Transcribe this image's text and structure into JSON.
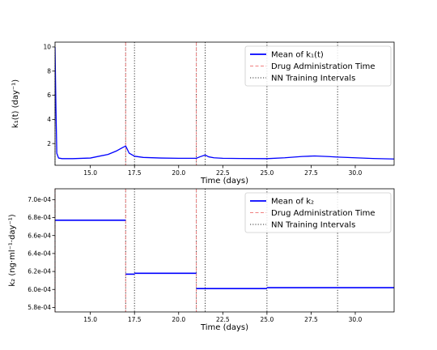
{
  "chart_data": [
    {
      "type": "line",
      "xlabel": "Time (days)",
      "ylabel": "k₁(t) (day⁻¹)",
      "xlim": [
        13.0,
        32.2
      ],
      "ylim": [
        0.2,
        10.4
      ],
      "x_ticks": [
        15.0,
        17.5,
        20.0,
        22.5,
        25.0,
        27.5,
        30.0
      ],
      "x_tick_labels": [
        "15.0",
        "17.5",
        "20.0",
        "22.5",
        "25.0",
        "27.5",
        "30.0"
      ],
      "y_ticks": [
        2,
        4,
        6,
        8,
        10
      ],
      "y_tick_labels": [
        "2",
        "4",
        "6",
        "8",
        "10"
      ],
      "legend_position": "upper-right",
      "legend": [
        {
          "label": "Mean of k₁(t)",
          "style": "solid",
          "color": "#0000ff"
        },
        {
          "label": "Drug Administration Time",
          "style": "dashed",
          "color": "#f08080"
        },
        {
          "label": "NN Training Intervals",
          "style": "dotted",
          "color": "#333333"
        }
      ],
      "series": [
        {
          "name": "Mean of k₁(t)",
          "color": "#0000ff",
          "x": [
            13.0,
            13.05,
            13.1,
            13.2,
            13.4,
            14.0,
            15.0,
            16.0,
            16.5,
            16.8,
            17.0,
            17.2,
            17.5,
            18.0,
            19.0,
            20.0,
            21.0,
            21.2,
            21.5,
            21.7,
            22.0,
            22.5,
            23.5,
            25.0,
            26.0,
            27.0,
            27.7,
            28.5,
            29.0,
            30.0,
            31.0,
            32.2
          ],
          "y": [
            10.0,
            5.0,
            1.2,
            0.8,
            0.75,
            0.75,
            0.8,
            1.1,
            1.4,
            1.65,
            1.8,
            1.2,
            0.95,
            0.85,
            0.8,
            0.78,
            0.78,
            0.9,
            1.05,
            0.9,
            0.82,
            0.78,
            0.76,
            0.75,
            0.82,
            0.93,
            0.97,
            0.92,
            0.88,
            0.82,
            0.76,
            0.72
          ]
        }
      ],
      "drug_administration_times": [
        17.0,
        21.0
      ],
      "nn_training_intervals": [
        13.0,
        17.0,
        17.5,
        21.0,
        21.5,
        25.0,
        29.0
      ]
    },
    {
      "type": "line",
      "xlabel": "Time (days)",
      "ylabel": "k₂ (ng·ml⁻¹·day⁻¹)",
      "xlim": [
        13.0,
        32.2
      ],
      "ylim": [
        0.000575,
        0.000712
      ],
      "x_ticks": [
        15.0,
        17.5,
        20.0,
        22.5,
        25.0,
        27.5,
        30.0
      ],
      "x_tick_labels": [
        "15.0",
        "17.5",
        "20.0",
        "22.5",
        "25.0",
        "27.5",
        "30.0"
      ],
      "y_ticks": [
        0.00058,
        0.0006,
        0.00062,
        0.00064,
        0.00066,
        0.00068,
        0.0007
      ],
      "y_tick_labels": [
        "5.8e-04",
        "6.0e-04",
        "6.2e-04",
        "6.4e-04",
        "6.6e-04",
        "6.8e-04",
        "7.0e-04"
      ],
      "legend_position": "upper-right",
      "legend": [
        {
          "label": "Mean of k₂",
          "style": "solid",
          "color": "#0000ff"
        },
        {
          "label": "Drug Administration Time",
          "style": "dashed",
          "color": "#f08080"
        },
        {
          "label": "NN Training Intervals",
          "style": "dotted",
          "color": "#333333"
        }
      ],
      "series": [
        {
          "name": "Mean of k₂",
          "color": "#0000ff",
          "segments": [
            {
              "x": [
                13.0,
                17.0
              ],
              "y": [
                0.000677,
                0.000677
              ]
            },
            {
              "x": [
                17.0,
                17.5
              ],
              "y": [
                0.000617,
                0.000617
              ]
            },
            {
              "x": [
                17.5,
                21.0
              ],
              "y": [
                0.000618,
                0.000618
              ]
            },
            {
              "x": [
                21.0,
                25.0
              ],
              "y": [
                0.000601,
                0.000601
              ]
            },
            {
              "x": [
                25.0,
                32.2
              ],
              "y": [
                0.000602,
                0.000602
              ]
            }
          ]
        }
      ],
      "drug_administration_times": [
        13.0,
        17.0,
        21.0
      ],
      "nn_training_intervals": [
        13.0,
        17.0,
        17.5,
        21.0,
        21.5,
        25.0,
        29.0
      ]
    }
  ]
}
